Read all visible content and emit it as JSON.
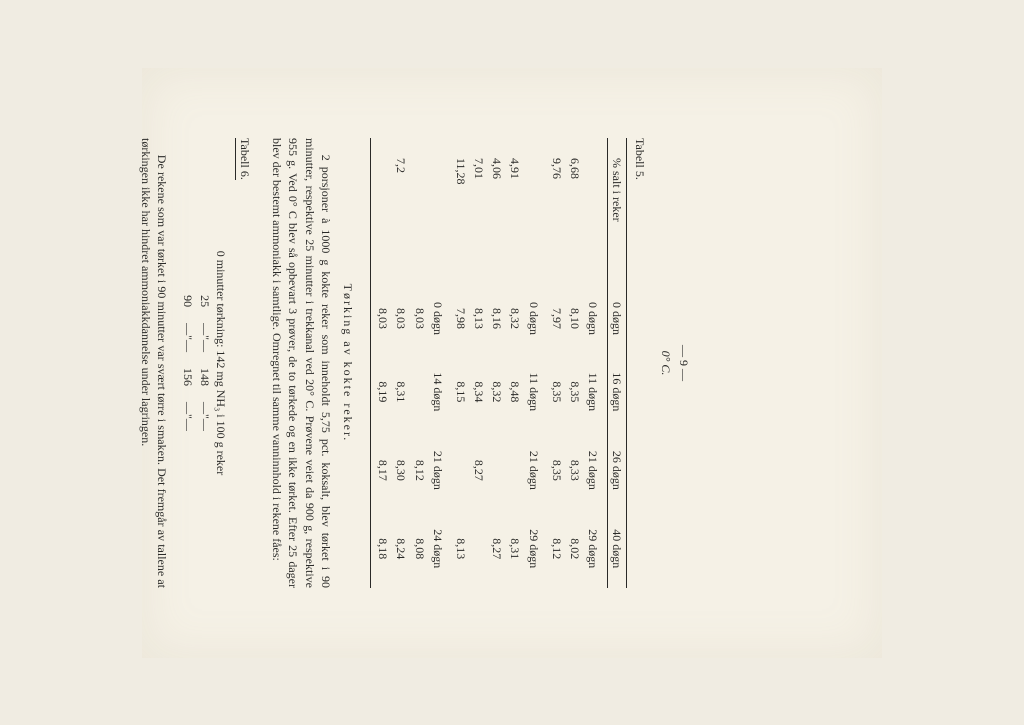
{
  "page_number_line": "— 9 —",
  "temperature_heading": "0° C.",
  "table5": {
    "label": "Tabell 5.",
    "columns": [
      "% salt i reker",
      "0 døgn",
      "16 døgn",
      "26 døgn",
      "40 døgn"
    ],
    "block1": {
      "subheads": [
        "",
        "0 døgn",
        "11 døgn",
        "21 døgn",
        "29 døgn"
      ],
      "rows": [
        [
          "6,68",
          "8,10",
          "8,35",
          "8,33",
          "8,02"
        ],
        [
          "9,76",
          "7,97",
          "8,35",
          "8,35",
          "8,12"
        ]
      ]
    },
    "block2": {
      "subheads": [
        "",
        "0 døgn",
        "11 døgn",
        "21 døgn",
        "29 døgn"
      ],
      "rows": [
        [
          "4,91",
          "8,32",
          "8,48",
          "",
          "8,31"
        ],
        [
          "4,06",
          "8,16",
          "8,32",
          "",
          "8,27"
        ],
        [
          "7,01",
          "8,13",
          "8,34",
          "8,27",
          ""
        ],
        [
          "11,28",
          "7,98",
          "8,15",
          "",
          "8,13"
        ]
      ]
    },
    "block3": {
      "subheads": [
        "",
        "0 døgn",
        "14 døgn",
        "21 døgn",
        "24 døgn"
      ],
      "rows": [
        [
          "",
          "8,03",
          "",
          "8,12",
          "8,08"
        ],
        [
          "7,2",
          "8,03",
          "8,31",
          "8,30",
          "8,24"
        ],
        [
          "",
          "8,03",
          "8,19",
          "8,17",
          "8,18"
        ]
      ]
    }
  },
  "section_heading": "Tørking av kokte reker.",
  "paragraph1": "2 porsjoner à 1000 g kokte reker som inneholdt 5,75 pct. koksalt, blev tørket i 90 minutter, respektive 25 minutter i trekkanal ved 20° C. Prøvene veiet da 900 g, respektive 955 g. Ved 0° C blev så opbevart 3 prøver, de to tørkede og en ikke tørket. Efter 25 dager blev der bestemt ammoniakk i samtlige. Omregnet til samme vanninnhold i rekene fåes:",
  "table6": {
    "label": "Tabell 6.",
    "heading": "0 minutter tørkning: 142 mg NH₃ i 100 g reker",
    "rows": [
      {
        "min": "25",
        "val": "148",
        "pre_ditto": "—\"—",
        "post_ditto": "—\"—"
      },
      {
        "min": "90",
        "val": "156",
        "pre_ditto": "—\"—",
        "post_ditto": "—\"—"
      }
    ]
  },
  "paragraph2": "De rekene som var tørket i 90 minutter var svært tørre i smaken. Det fremgår av tallene at tørkingen ikke har hindret ammoniakkdannelse under lagringen."
}
